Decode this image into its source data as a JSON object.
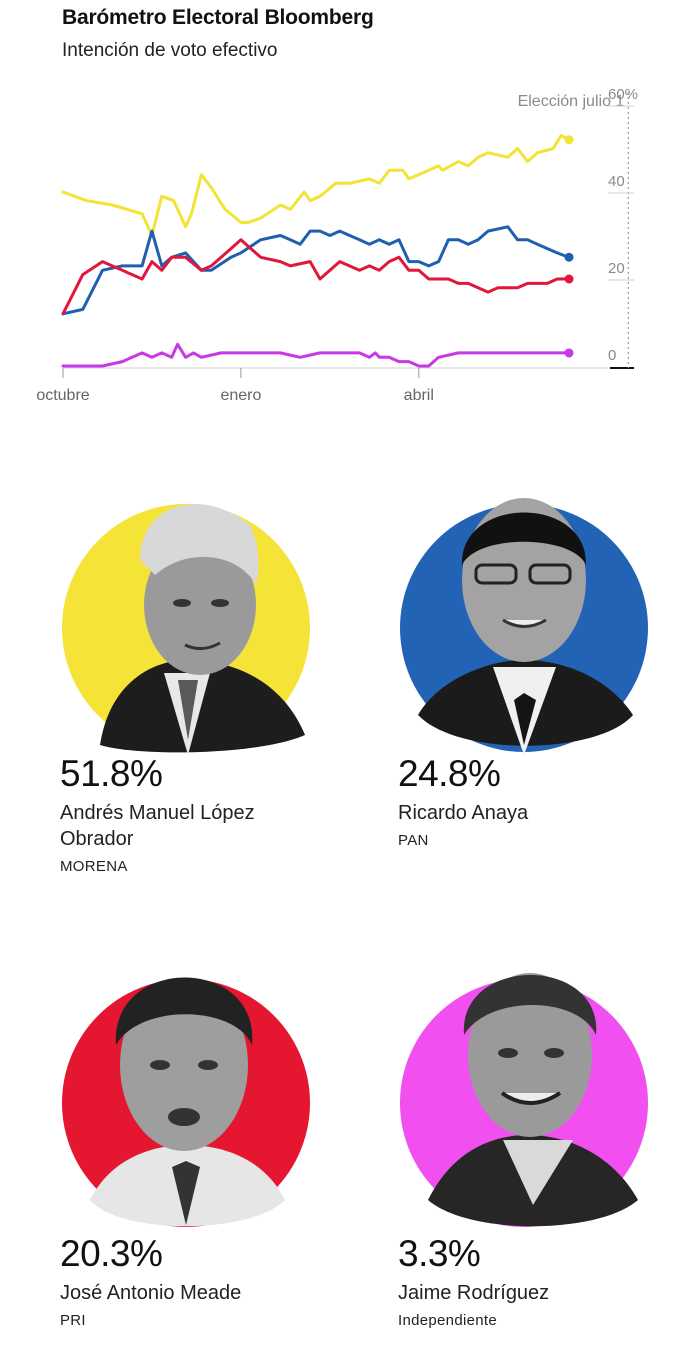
{
  "header": {
    "title": "Barómetro Electoral Bloomberg",
    "subtitle": "Intención de voto efectivo"
  },
  "chart_data": {
    "type": "line",
    "title": "Barómetro Electoral Bloomberg",
    "subtitle": "Intención de voto efectivo",
    "y_ticks": [
      "60%",
      "40",
      "20",
      "0"
    ],
    "ylim": [
      0,
      60
    ],
    "x_tick_labels": [
      "octubre",
      "enero",
      "abril"
    ],
    "x_tick_positions": [
      0,
      90,
      180
    ],
    "xlim": [
      0,
      300
    ],
    "reference_line": {
      "x": 286,
      "label": "Elección julio 1"
    },
    "grid": false,
    "series": [
      {
        "color": "#f2e335",
        "x": [
          0,
          12,
          25,
          40,
          45,
          50,
          56,
          62,
          65,
          70,
          75,
          82,
          90,
          94,
          100,
          110,
          115,
          122,
          125,
          130,
          138,
          145,
          155,
          160,
          165,
          172,
          175,
          180,
          185,
          190,
          192,
          200,
          205,
          210,
          215,
          225,
          230,
          235,
          240,
          248,
          252,
          256
        ],
        "values": [
          40,
          38,
          37,
          35,
          30,
          39,
          38,
          32,
          35,
          44,
          41,
          36,
          33,
          33,
          34,
          37,
          36,
          40,
          38,
          39,
          42,
          42,
          43,
          42,
          45,
          45,
          43,
          44,
          45,
          46,
          45,
          47,
          46,
          48,
          49,
          48,
          50,
          47,
          49,
          50,
          53,
          52
        ]
      },
      {
        "color": "#1f5fb0",
        "x": [
          0,
          10,
          20,
          30,
          40,
          45,
          50,
          55,
          62,
          70,
          75,
          85,
          90,
          100,
          110,
          115,
          120,
          125,
          130,
          135,
          140,
          150,
          155,
          160,
          165,
          170,
          175,
          180,
          185,
          190,
          195,
          200,
          205,
          210,
          215,
          225,
          230,
          235,
          240,
          245,
          250,
          256
        ],
        "values": [
          12,
          13,
          22,
          23,
          23,
          31,
          23,
          25,
          26,
          22,
          22,
          25,
          26,
          29,
          30,
          29,
          28,
          31,
          31,
          30,
          31,
          29,
          28,
          29,
          28,
          29,
          24,
          24,
          23,
          24,
          29,
          29,
          28,
          29,
          31,
          32,
          29,
          29,
          28,
          27,
          26,
          25
        ]
      },
      {
        "color": "#e0173a",
        "x": [
          0,
          10,
          20,
          30,
          40,
          45,
          50,
          55,
          62,
          70,
          75,
          85,
          90,
          95,
          100,
          110,
          115,
          125,
          130,
          135,
          140,
          150,
          155,
          160,
          165,
          170,
          175,
          180,
          185,
          190,
          195,
          200,
          205,
          210,
          215,
          220,
          230,
          235,
          240,
          245,
          250,
          256
        ],
        "values": [
          12,
          21,
          24,
          22,
          20,
          24,
          22,
          25,
          25,
          22,
          23,
          27,
          29,
          27,
          25,
          24,
          23,
          24,
          20,
          22,
          24,
          22,
          23,
          22,
          24,
          25,
          22,
          22,
          20,
          20,
          20,
          19,
          19,
          18,
          17,
          18,
          18,
          19,
          19,
          19,
          20,
          20
        ]
      },
      {
        "color": "#c937e6",
        "x": [
          0,
          10,
          20,
          30,
          40,
          45,
          50,
          55,
          58,
          62,
          66,
          70,
          80,
          90,
          100,
          110,
          120,
          130,
          140,
          150,
          155,
          158,
          160,
          165,
          170,
          175,
          180,
          185,
          190,
          200,
          210,
          220,
          230,
          240,
          256
        ],
        "values": [
          0,
          0,
          0,
          1,
          3,
          2,
          3,
          2,
          5,
          2,
          3,
          2,
          3,
          3,
          3,
          3,
          2,
          3,
          3,
          3,
          2,
          3,
          2,
          2,
          1,
          1,
          0,
          0,
          2,
          3,
          3,
          3,
          3,
          3,
          3
        ]
      }
    ]
  },
  "candidates": [
    {
      "pct": "51.8%",
      "name": "Andrés Manuel López Obrador",
      "party": "MORENA",
      "color": "#f6e337"
    },
    {
      "pct": "24.8%",
      "name": "Ricardo Anaya",
      "party": "PAN",
      "color": "#2363b5"
    },
    {
      "pct": "20.3%",
      "name": "José Antonio Meade",
      "party": "PRI",
      "color": "#e5162f"
    },
    {
      "pct": "3.3%",
      "name": "Jaime Rodríguez",
      "party": "Independiente",
      "color": "#f14ff0"
    }
  ]
}
